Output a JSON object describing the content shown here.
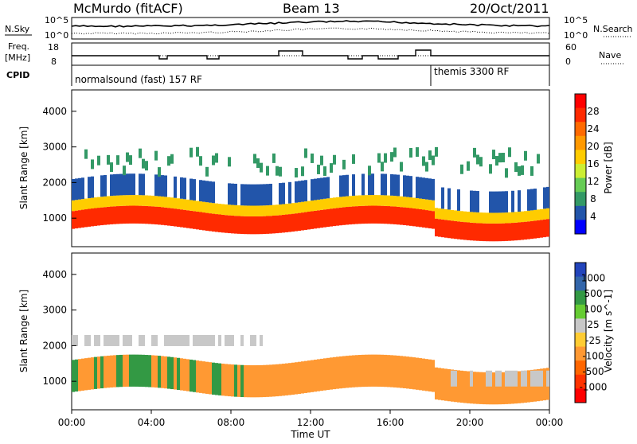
{
  "header": {
    "title": "McMurdo (fitACF)",
    "beam": "Beam 13",
    "date": "20/Oct/2011"
  },
  "top_panel": {
    "left_label": "N.Sky",
    "left_ticks": [
      "10^5",
      "10^0"
    ],
    "right_ticks": [
      "10^5",
      "10^0"
    ],
    "right_label": "N.Search"
  },
  "freq_panel": {
    "left_label_1": "Freq.",
    "left_label_2": "[MHz]",
    "left_ticks": [
      "18",
      "8"
    ],
    "right_ticks": [
      "60",
      "0"
    ],
    "right_label": "Nave"
  },
  "cpid_panel": {
    "label": "CPID",
    "mode1": "normalsound (fast) 157 RF",
    "mode2": "themis 3300 RF"
  },
  "chart_data": [
    {
      "type": "heatmap",
      "name_panel": "power",
      "ylabel": "Slant Range [km]",
      "yticks": [
        1000,
        2000,
        3000,
        4000
      ],
      "ylim": [
        200,
        4600
      ],
      "xlim": [
        0,
        24
      ],
      "colorbar": {
        "label": "Power [dB]",
        "ticks": [
          "28",
          "24",
          "20",
          "16",
          "12",
          "8",
          "4"
        ],
        "colors": [
          "#ff0000",
          "#ff2a00",
          "#ff6a00",
          "#ff9900",
          "#ffcc00",
          "#ccee33",
          "#66cc55",
          "#339966",
          "#2255aa",
          "#0000ff"
        ]
      }
    },
    {
      "type": "heatmap",
      "name_panel": "velocity",
      "ylabel": "Slant Range [km]",
      "yticks": [
        1000,
        2000,
        3000,
        4000
      ],
      "ylim": [
        200,
        4600
      ],
      "xlim": [
        0,
        24
      ],
      "colorbar": {
        "label": "Velocity [m s^-1]",
        "ticks": [
          "1000",
          "500",
          "100",
          "25",
          "-25",
          "-100",
          "-500",
          "-1000"
        ],
        "colors": [
          "#2244bb",
          "#3366aa",
          "#339944",
          "#66cc33",
          "#c8c8c8",
          "#ffcc33",
          "#ff9933",
          "#ff6600",
          "#ff3300",
          "#ff0000"
        ]
      }
    }
  ],
  "xaxis": {
    "label": "Time UT",
    "ticks": [
      "00:00",
      "04:00",
      "08:00",
      "12:00",
      "16:00",
      "20:00",
      "00:00"
    ]
  }
}
